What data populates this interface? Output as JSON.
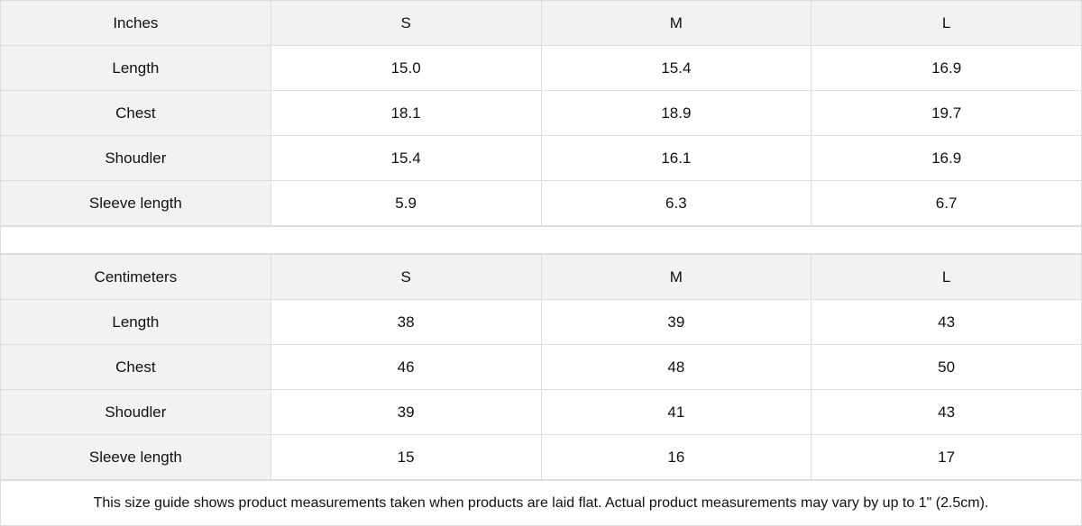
{
  "tables": [
    {
      "unit": "Inches",
      "sizes": [
        "S",
        "M",
        "L"
      ],
      "rows": [
        {
          "label": "Length",
          "values": [
            "15.0",
            "15.4",
            "16.9"
          ]
        },
        {
          "label": "Chest",
          "values": [
            "18.1",
            "18.9",
            "19.7"
          ]
        },
        {
          "label": "Shoudler",
          "values": [
            "15.4",
            "16.1",
            "16.9"
          ]
        },
        {
          "label": "Sleeve length",
          "values": [
            "5.9",
            "6.3",
            "6.7"
          ]
        }
      ]
    },
    {
      "unit": "Centimeters",
      "sizes": [
        "S",
        "M",
        "L"
      ],
      "rows": [
        {
          "label": "Length",
          "values": [
            "38",
            "39",
            "43"
          ]
        },
        {
          "label": "Chest",
          "values": [
            "46",
            "48",
            "50"
          ]
        },
        {
          "label": "Shoudler",
          "values": [
            "39",
            "41",
            "43"
          ]
        },
        {
          "label": "Sleeve length",
          "values": [
            "15",
            "16",
            "17"
          ]
        }
      ]
    }
  ],
  "note": "This size guide shows product measurements taken when products are laid flat.  Actual product measurements may vary by up to 1\" (2.5cm)."
}
